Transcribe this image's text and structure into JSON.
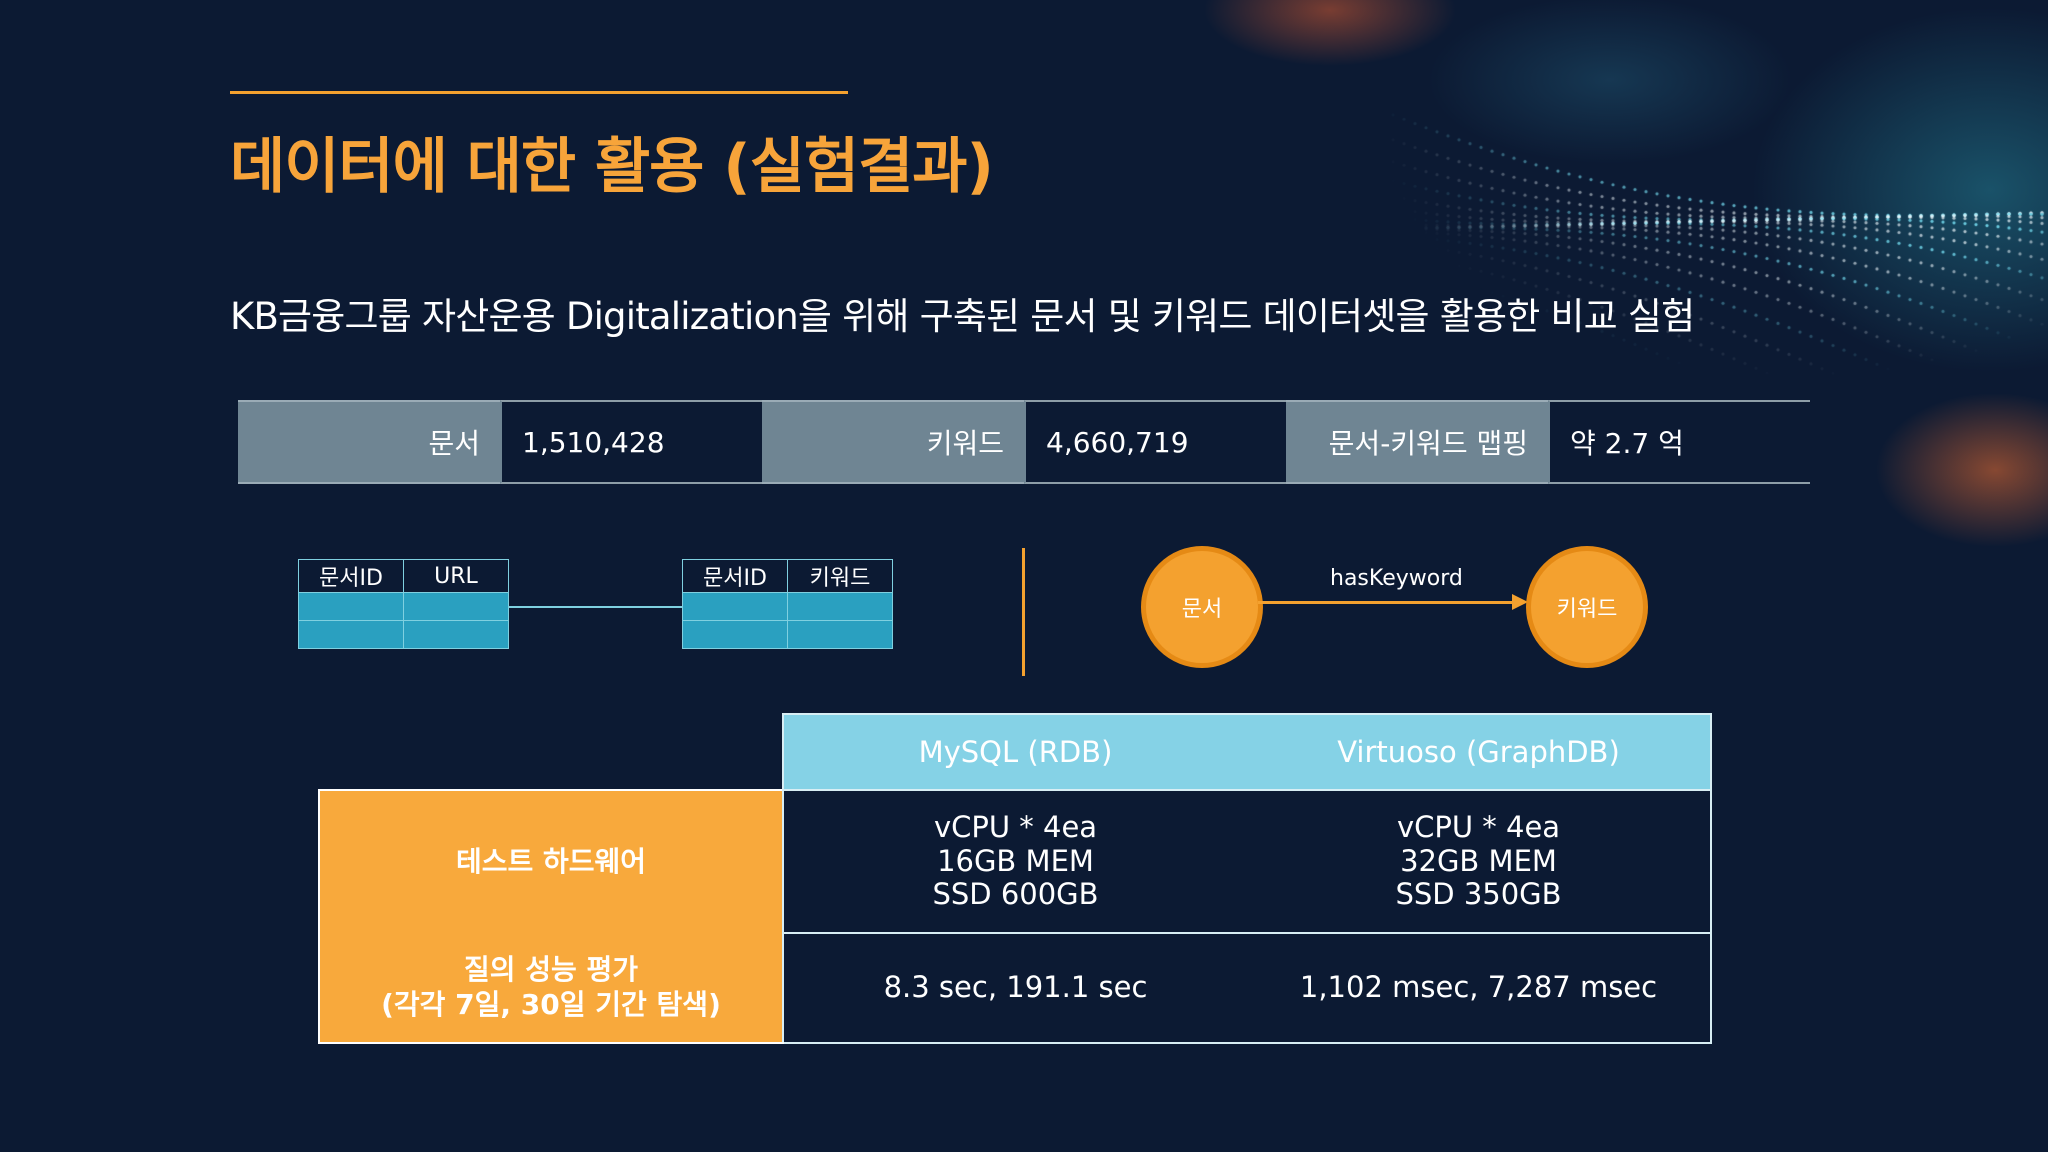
{
  "slide": {
    "title": "데이터에 대한 활용 (실험결과)",
    "subtitle": "KB금융그룹 자산운용 Digitalization을 위해 구축된 문서 및 키워드 데이터셋을 활용한 비교 실험"
  },
  "stats": [
    {
      "label": "문서",
      "value": "1,510,428"
    },
    {
      "label": "키워드",
      "value": "4,660,719"
    },
    {
      "label": "문서-키워드 맵핑",
      "value": "약 2.7 억"
    }
  ],
  "rdb_schema": {
    "table1": [
      "문서ID",
      "URL"
    ],
    "table2": [
      "문서ID",
      "키워드"
    ]
  },
  "graph_schema": {
    "source_node": "문서",
    "edge_label": "hasKeyword",
    "target_node": "키워드"
  },
  "comparison": {
    "columns": [
      "MySQL (RDB)",
      "Virtuoso (GraphDB)"
    ],
    "rows": [
      {
        "label": [
          "테스트 하드웨어"
        ],
        "values": [
          [
            "vCPU * 4ea",
            "16GB MEM",
            "SSD 600GB"
          ],
          [
            "vCPU * 4ea",
            "32GB MEM",
            "SSD 350GB"
          ]
        ]
      },
      {
        "label": [
          "질의 성능 평가",
          "(각각 7일, 30일 기간 탐색)"
        ],
        "values": [
          [
            "8.3 sec, 191.1 sec"
          ],
          [
            "1,102 msec, 7,287 msec"
          ]
        ]
      }
    ]
  },
  "colors": {
    "background": "#0c1a33",
    "accent": "#f4a12f",
    "table_header": "#85d2e6",
    "row_header": "#f8a93c",
    "stat_label_bg": "#6f8593",
    "schema_row": "#2aa0c0"
  }
}
